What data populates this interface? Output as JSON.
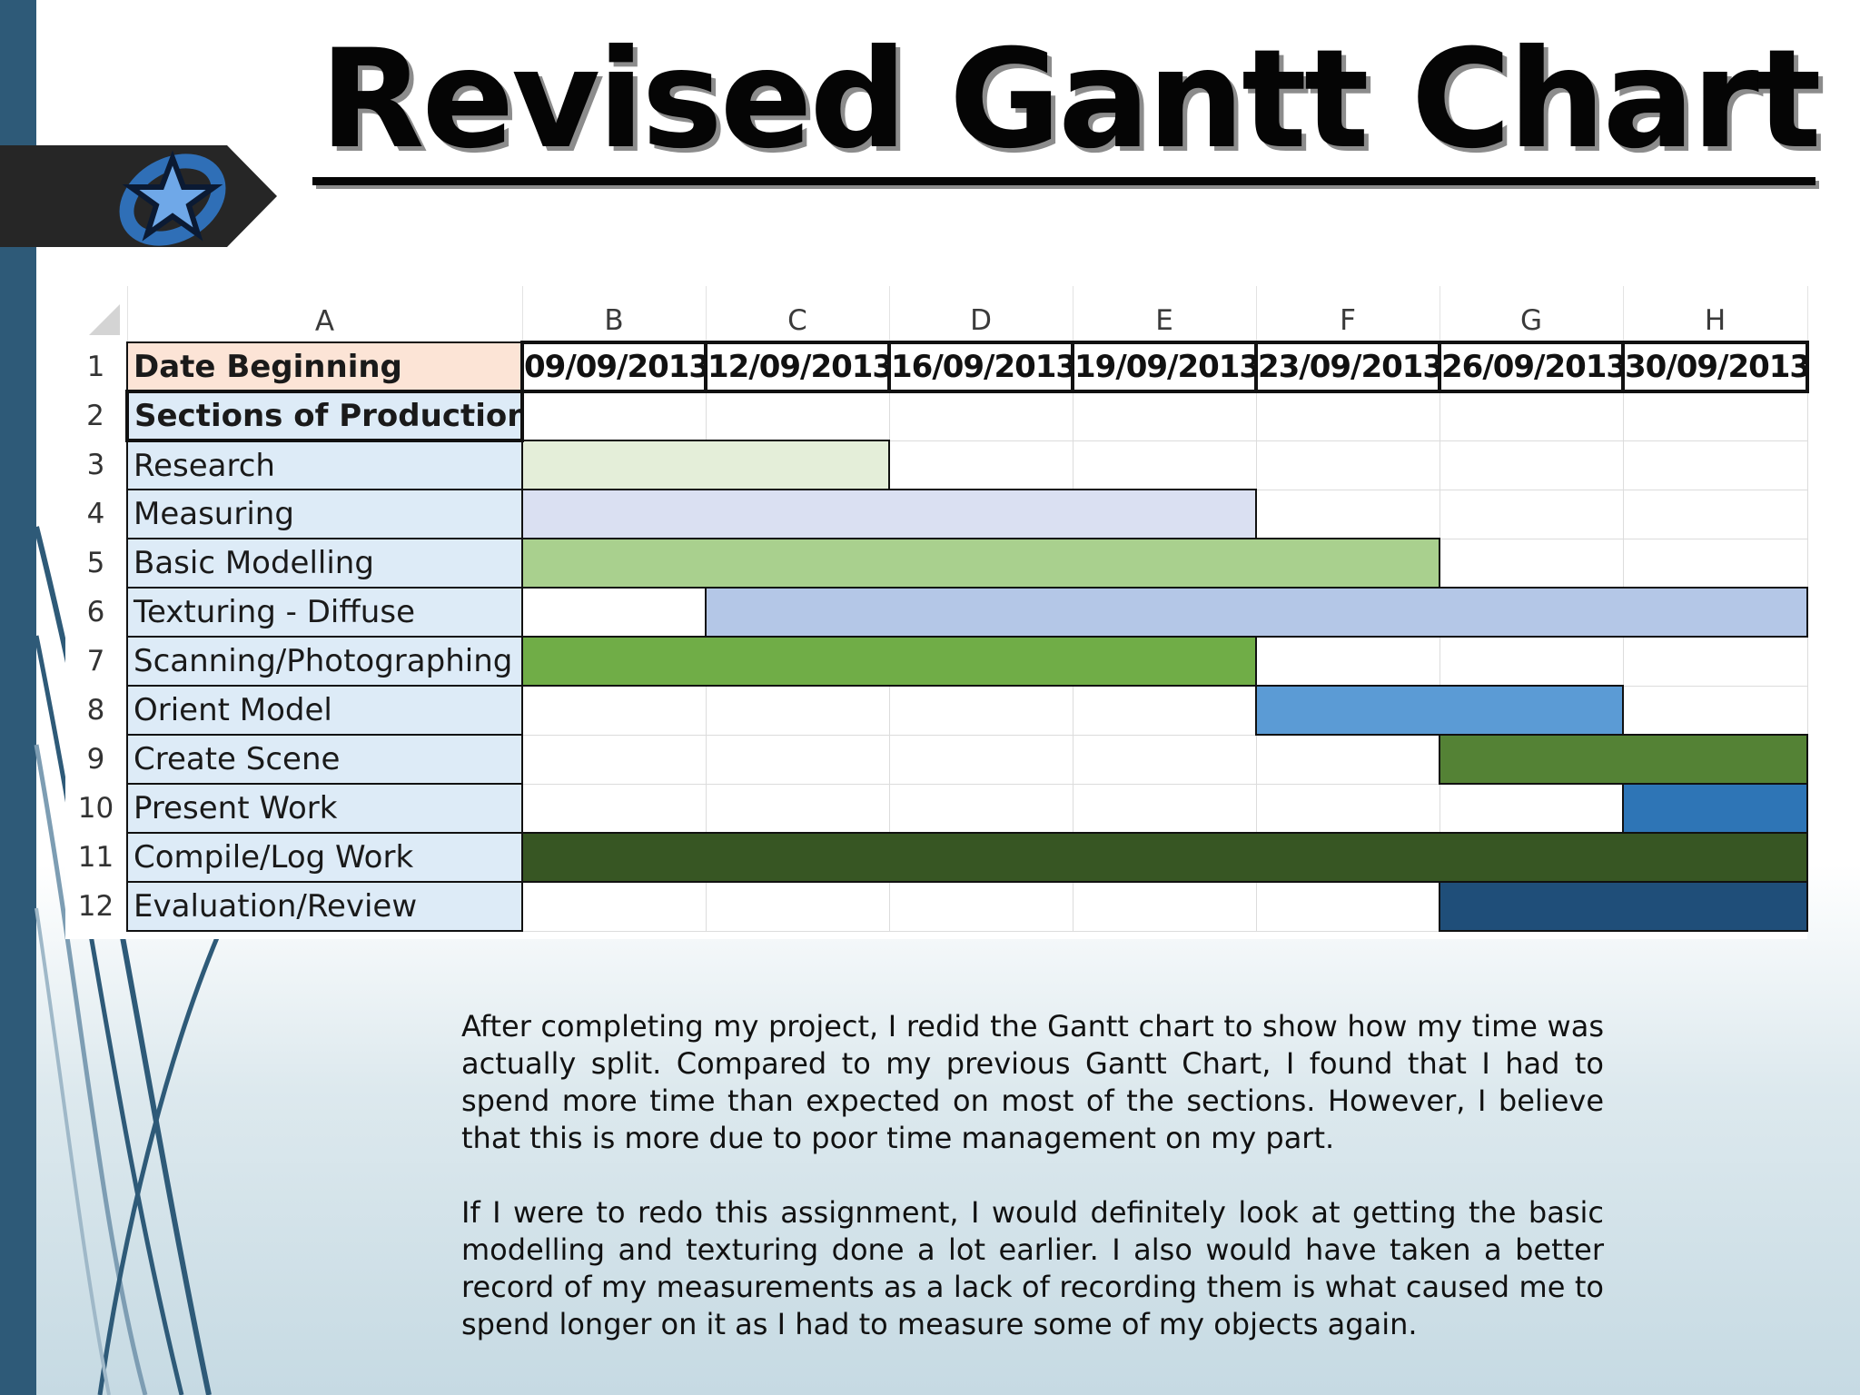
{
  "slide": {
    "title": "Revised Gantt Chart"
  },
  "spreadsheet": {
    "columns": [
      "A",
      "B",
      "C",
      "D",
      "E",
      "F",
      "G",
      "H"
    ],
    "header_label": "Date Beginning",
    "dates": [
      "09/09/2013",
      "12/09/2013",
      "16/09/2013",
      "19/09/2013",
      "23/09/2013",
      "26/09/2013",
      "30/09/2013"
    ],
    "section_label": "Sections of Production",
    "row_numbers": [
      "1",
      "2",
      "3",
      "4",
      "5",
      "6",
      "7",
      "8",
      "9",
      "10",
      "11",
      "12"
    ],
    "tasks": [
      {
        "name": "Research",
        "start_col": 0,
        "end_col": 1,
        "color": "#e4eed9"
      },
      {
        "name": "Measuring",
        "start_col": 0,
        "end_col": 3,
        "color": "#dae0f2"
      },
      {
        "name": "Basic Modelling",
        "start_col": 0,
        "end_col": 4,
        "color": "#a9d08e"
      },
      {
        "name": "Texturing - Diffuse",
        "start_col": 1,
        "end_col": 6,
        "color": "#b4c7e7"
      },
      {
        "name": "Scanning/Photographing",
        "start_col": 0,
        "end_col": 3,
        "color": "#70ad47"
      },
      {
        "name": "Orient Model",
        "start_col": 4,
        "end_col": 5,
        "color": "#5b9bd5"
      },
      {
        "name": "Create Scene",
        "start_col": 5,
        "end_col": 6,
        "color": "#548235"
      },
      {
        "name": "Present Work",
        "start_col": 6,
        "end_col": 6,
        "color": "#2e75b6"
      },
      {
        "name": "Compile/Log Work",
        "start_col": 0,
        "end_col": 6,
        "color": "#375623"
      },
      {
        "name": "Evaluation/Review",
        "start_col": 5,
        "end_col": 6,
        "color": "#1f4e79"
      }
    ]
  },
  "commentary": {
    "paragraph1": "After completing my project, I redid the Gantt chart to show how my time was actually split. Compared to my previous Gantt Chart, I found that I had to spend more time than expected on most of the sections. However, I believe that this is more due to poor time management on my part.",
    "paragraph2": "If I were to redo this assignment, I would definitely look at getting the basic modelling and texturing done a lot earlier. I also would have taken a better record of my measurements as a lack of recording them is what caused me to spend longer on it as I had to measure some of my objects again."
  },
  "colors": {
    "left_bar": "#2e5a78",
    "badge": "#262626",
    "logo_blue": "#2f6fb7"
  },
  "icons": {
    "logo": "star-swoosh-icon"
  }
}
